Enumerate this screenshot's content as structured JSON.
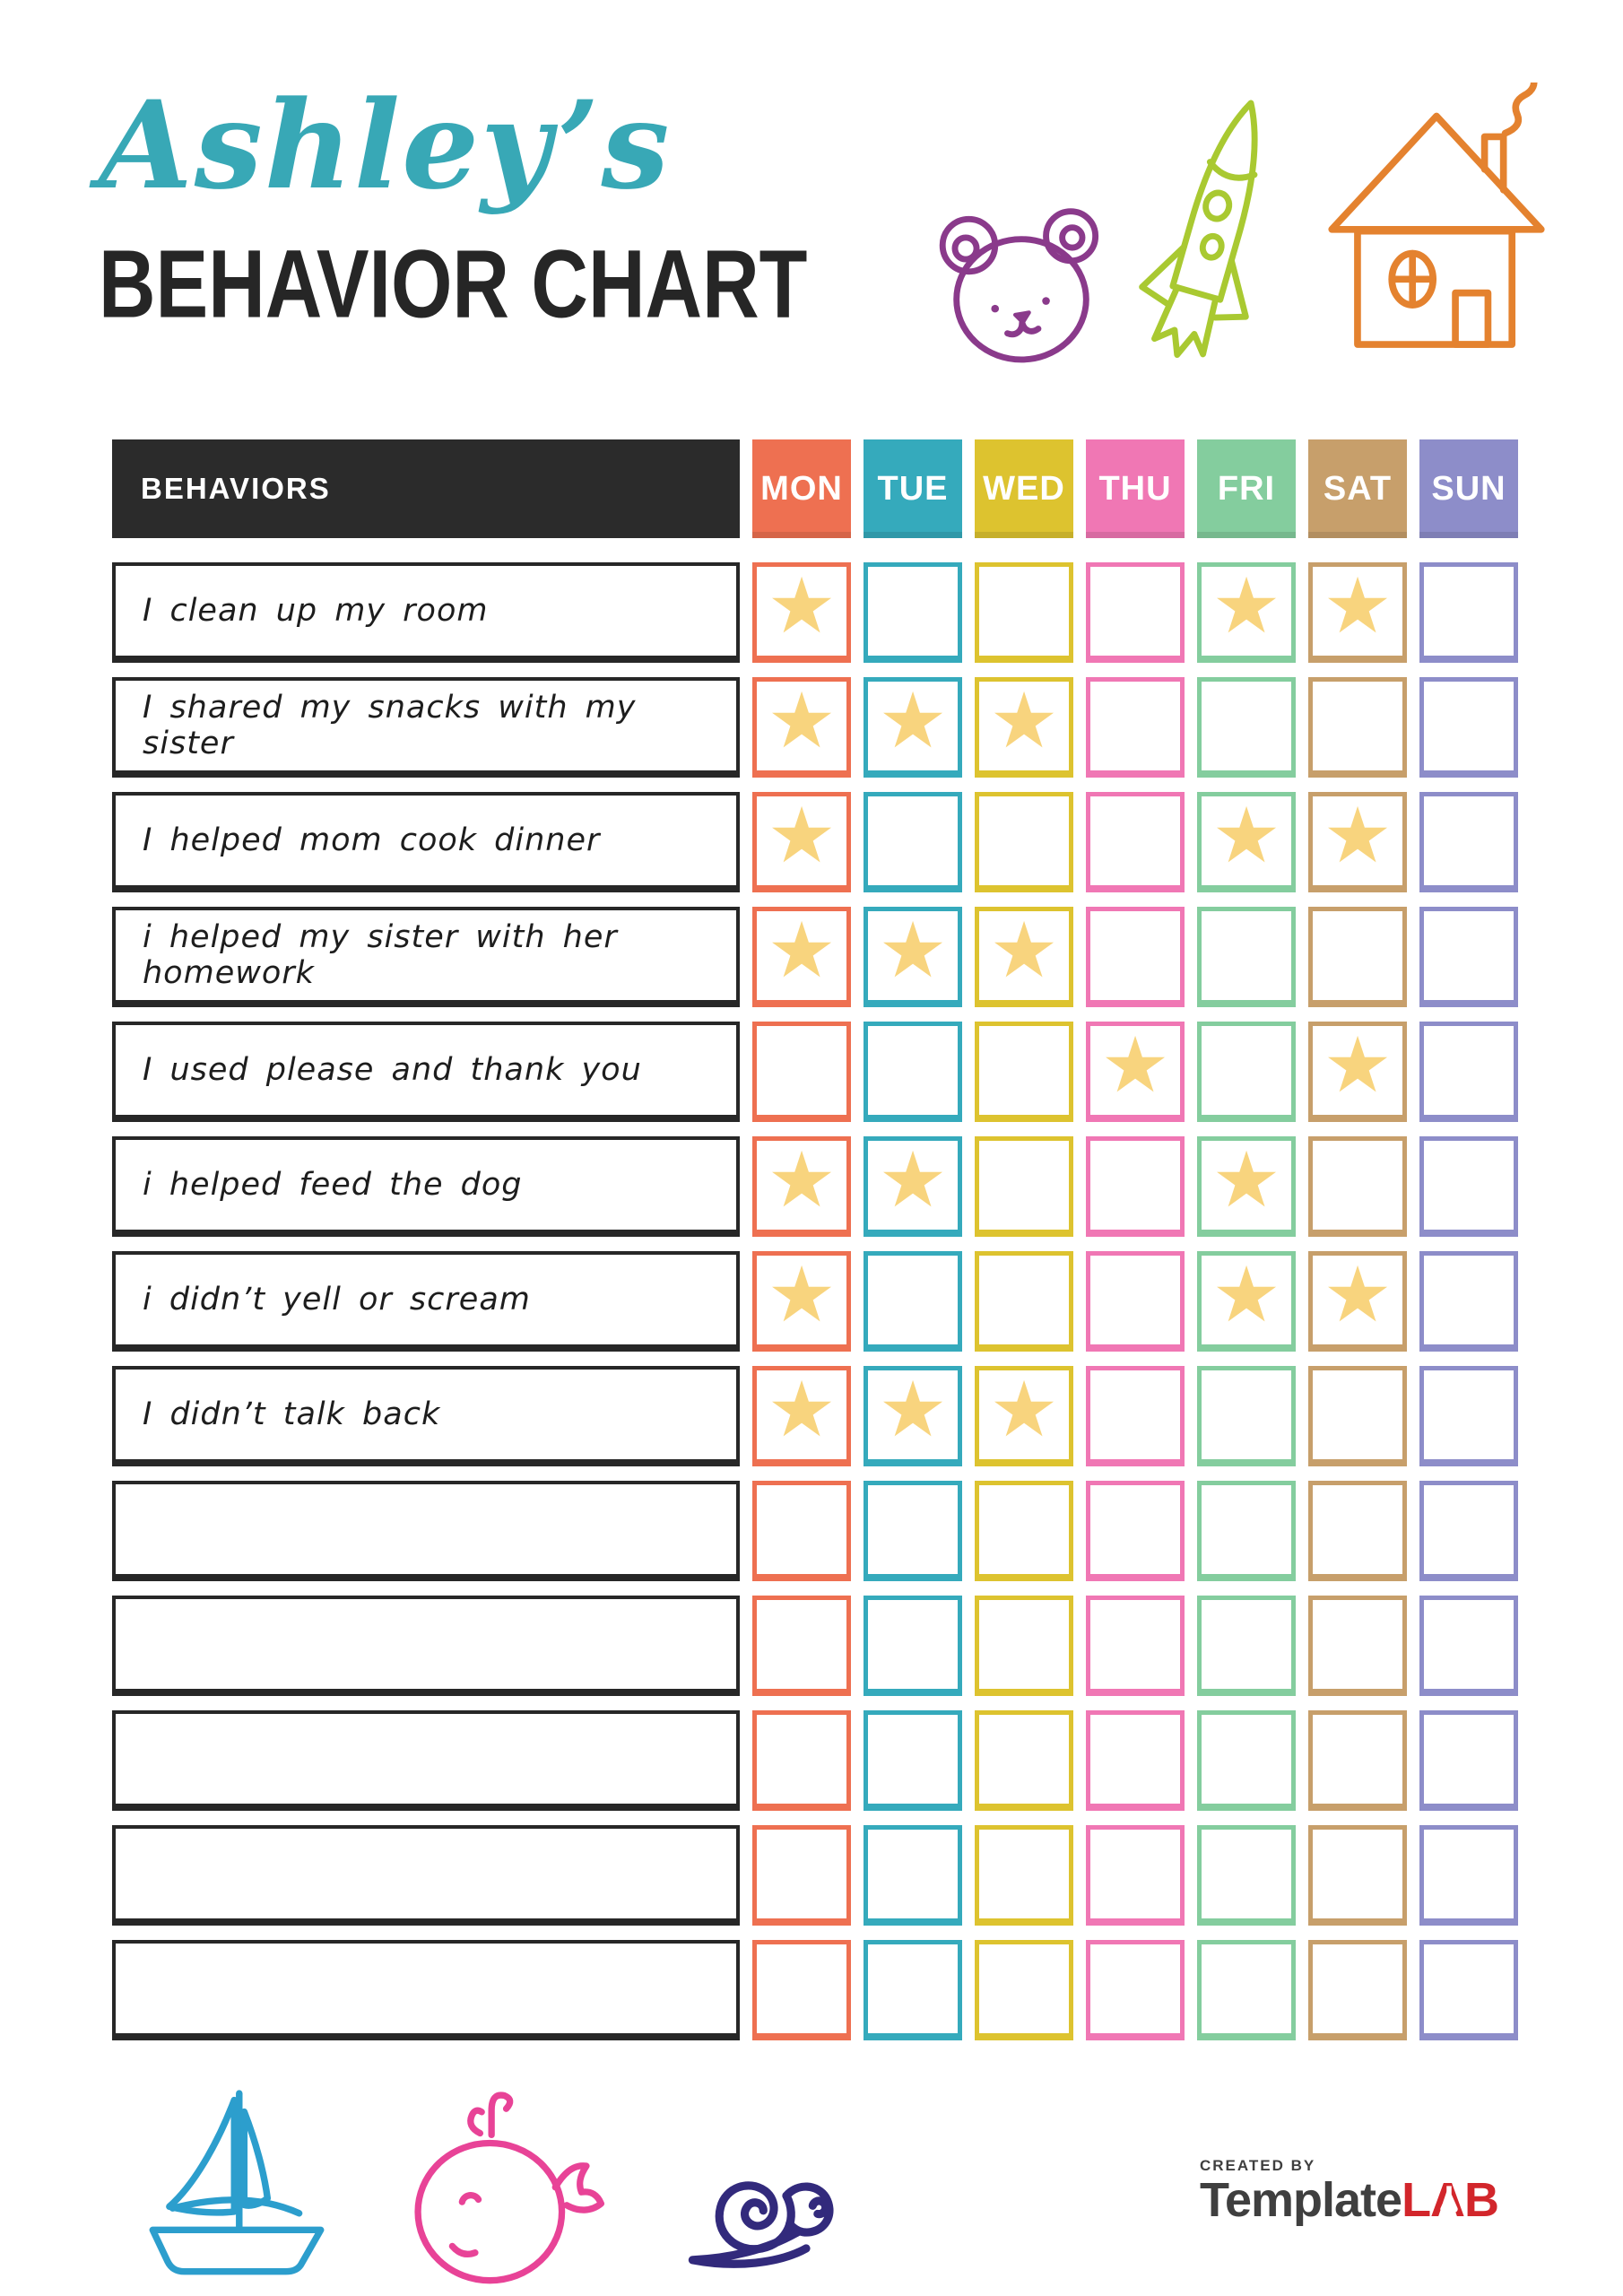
{
  "title": {
    "name": "Ashley’s",
    "heading": "BEHAVIOR CHART",
    "name_color": "#38a8b6",
    "heading_color": "#262626"
  },
  "table": {
    "behaviors_header": "BEHAVIORS",
    "behaviors_header_bg": "#2b2b2b",
    "days": [
      {
        "label": "MON",
        "color": "#ee7051"
      },
      {
        "label": "TUE",
        "color": "#35aabc"
      },
      {
        "label": "WED",
        "color": "#ddc32f"
      },
      {
        "label": "THU",
        "color": "#f077b4"
      },
      {
        "label": "FRI",
        "color": "#84cd9e"
      },
      {
        "label": "SAT",
        "color": "#c79f6b"
      },
      {
        "label": "SUN",
        "color": "#8d8dc9"
      }
    ],
    "star_icon": "★",
    "star_color": "#f8d47e",
    "rows": [
      {
        "behavior": "I clean up my room",
        "stars": [
          1,
          0,
          0,
          0,
          1,
          1,
          0
        ]
      },
      {
        "behavior": "I shared my snacks with my sister",
        "stars": [
          1,
          1,
          1,
          0,
          0,
          0,
          0
        ]
      },
      {
        "behavior": "I helped mom cook dinner",
        "stars": [
          1,
          0,
          0,
          0,
          1,
          1,
          0
        ]
      },
      {
        "behavior": "i helped my sister with her homework",
        "stars": [
          1,
          1,
          1,
          0,
          0,
          0,
          0
        ]
      },
      {
        "behavior": "I used please and thank you",
        "stars": [
          0,
          0,
          0,
          1,
          0,
          1,
          0
        ]
      },
      {
        "behavior": "i helped feed the dog",
        "stars": [
          1,
          1,
          0,
          0,
          1,
          0,
          0
        ]
      },
      {
        "behavior": "i didn’t yell or scream",
        "stars": [
          1,
          0,
          0,
          0,
          1,
          1,
          0
        ]
      },
      {
        "behavior": "I didn’t talk back",
        "stars": [
          1,
          1,
          1,
          0,
          0,
          0,
          0
        ]
      },
      {
        "behavior": "",
        "stars": [
          0,
          0,
          0,
          0,
          0,
          0,
          0
        ]
      },
      {
        "behavior": "",
        "stars": [
          0,
          0,
          0,
          0,
          0,
          0,
          0
        ]
      },
      {
        "behavior": "",
        "stars": [
          0,
          0,
          0,
          0,
          0,
          0,
          0
        ]
      },
      {
        "behavior": "",
        "stars": [
          0,
          0,
          0,
          0,
          0,
          0,
          0
        ]
      },
      {
        "behavior": "",
        "stars": [
          0,
          0,
          0,
          0,
          0,
          0,
          0
        ]
      }
    ]
  },
  "decorations": {
    "top": [
      "teddy-bear",
      "rocket",
      "house"
    ],
    "bottom": [
      "sailboat",
      "whale",
      "snail"
    ],
    "colors": {
      "teddy_bear": "#8a3a8b",
      "rocket": "#a9c931",
      "house": "#e4822f",
      "sailboat": "#2c9ecd",
      "whale": "#e84397",
      "snail": "#322a7c"
    }
  },
  "footer": {
    "created_by": "CREATED BY",
    "brand_primary": "Template",
    "brand_accent": "LAB",
    "brand_primary_color": "#3f3f3f",
    "brand_accent_color": "#d2262b"
  }
}
